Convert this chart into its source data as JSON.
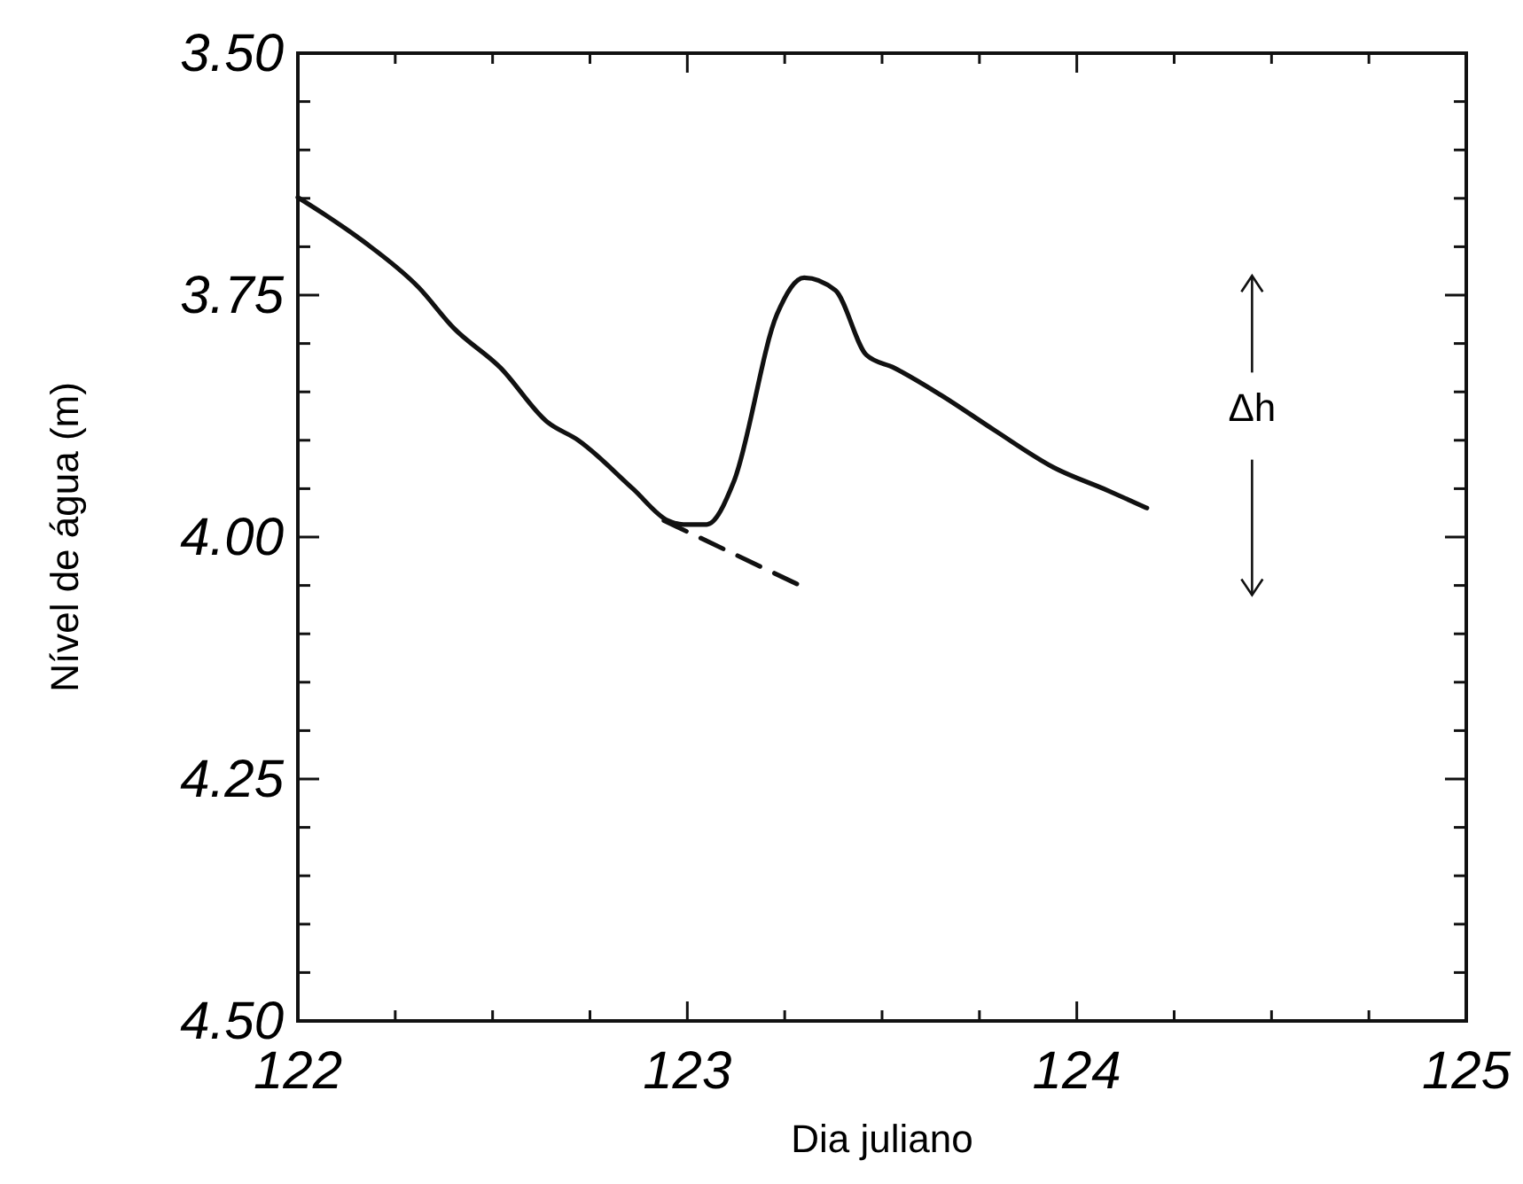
{
  "chart_data": {
    "type": "line",
    "xlabel": "Dia juliano",
    "ylabel": "Nível de água (m)",
    "xlim": [
      122,
      125
    ],
    "ylim": [
      4.5,
      3.5
    ],
    "xticks": [
      122,
      {
        "value": 122.25,
        "label": null
      },
      {
        "value": 122.5,
        "label": null
      },
      {
        "value": 122.75,
        "label": null
      },
      123,
      {
        "value": 123.25,
        "label": null
      },
      {
        "value": 123.5,
        "label": null
      },
      {
        "value": 123.75,
        "label": null
      },
      124,
      {
        "value": 124.25,
        "label": null
      },
      {
        "value": 124.5,
        "label": null
      },
      {
        "value": 124.75,
        "label": null
      },
      125
    ],
    "yticks": [
      {
        "value": 3.5,
        "label": "3.50"
      },
      {
        "value": 3.55,
        "label": null
      },
      {
        "value": 3.6,
        "label": null
      },
      {
        "value": 3.65,
        "label": null
      },
      {
        "value": 3.7,
        "label": null
      },
      3.75,
      {
        "value": 3.8,
        "label": null
      },
      {
        "value": 3.85,
        "label": null
      },
      {
        "value": 3.9,
        "label": null
      },
      {
        "value": 3.95,
        "label": null
      },
      {
        "value": 4,
        "label": "4.00"
      },
      {
        "value": 4.05,
        "label": null
      },
      {
        "value": 4.1,
        "label": null
      },
      {
        "value": 4.15,
        "label": null
      },
      {
        "value": 4.2,
        "label": null
      },
      4.25,
      {
        "value": 4.3,
        "label": null
      },
      {
        "value": 4.35,
        "label": null
      },
      {
        "value": 4.4,
        "label": null
      },
      {
        "value": 4.45,
        "label": null
      },
      {
        "value": 4.5,
        "label": "4.50"
      }
    ],
    "grid": false,
    "marker": "none",
    "series": [
      {
        "color": "#111111",
        "line_style": "solid",
        "x": [
          122,
          122.07,
          122.17,
          122.31,
          122.4,
          122.52,
          122.64,
          122.72,
          122.86,
          122.95,
          122.99,
          123.05,
          123.12,
          123.23,
          123.3,
          123.38,
          123.46,
          123.53,
          123.65,
          123.79,
          123.94,
          124.08,
          124.18
        ],
        "values": [
          3.649,
          3.667,
          3.695,
          3.742,
          3.784,
          3.825,
          3.881,
          3.9,
          3.95,
          3.983,
          3.987,
          3.987,
          3.942,
          3.77,
          3.732,
          3.745,
          3.812,
          3.825,
          3.853,
          3.89,
          3.928,
          3.952,
          3.97
        ]
      },
      {
        "color": "#111111",
        "line_style": "dashed",
        "x": [
          122.94,
          123.3
        ],
        "values": [
          3.983,
          4.052
        ]
      }
    ],
    "annotations": [
      "Δh"
    ]
  }
}
